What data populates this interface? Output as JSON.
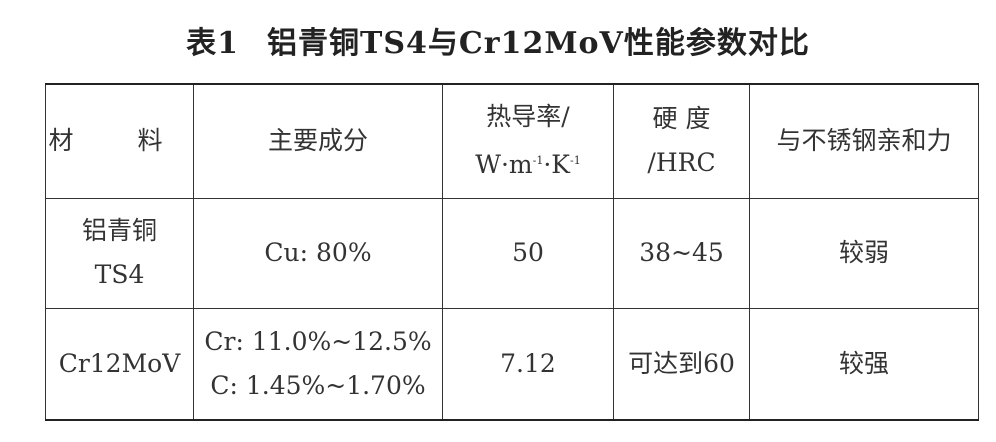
{
  "title": {
    "number": "表1",
    "text": "铝青铜TS4与Cr12MoV性能参数对比"
  },
  "table": {
    "headers": {
      "material": "材 料",
      "composition": "主要成分",
      "conductivity_line1": "热导率/",
      "conductivity_unit_w": "W·m",
      "conductivity_exp1": "-1",
      "conductivity_unit_k": "·K",
      "conductivity_exp2": "-1",
      "hardness_line1": "硬 度",
      "hardness_line2": "/HRC",
      "affinity": "与不锈钢亲和力"
    },
    "rows": [
      {
        "material_line1": "铝青铜",
        "material_line2": "TS4",
        "composition_line1": "Cu: 80%",
        "composition_line2": "",
        "conductivity": "50",
        "hardness": "38~45",
        "affinity": "较弱"
      },
      {
        "material_line1": "Cr12MoV",
        "material_line2": "",
        "composition_line1": "Cr: 11.0%~12.5%",
        "composition_line2": "C: 1.45%~1.70%",
        "conductivity": "7.12",
        "hardness": "可达到60",
        "affinity": "较强"
      }
    ]
  }
}
